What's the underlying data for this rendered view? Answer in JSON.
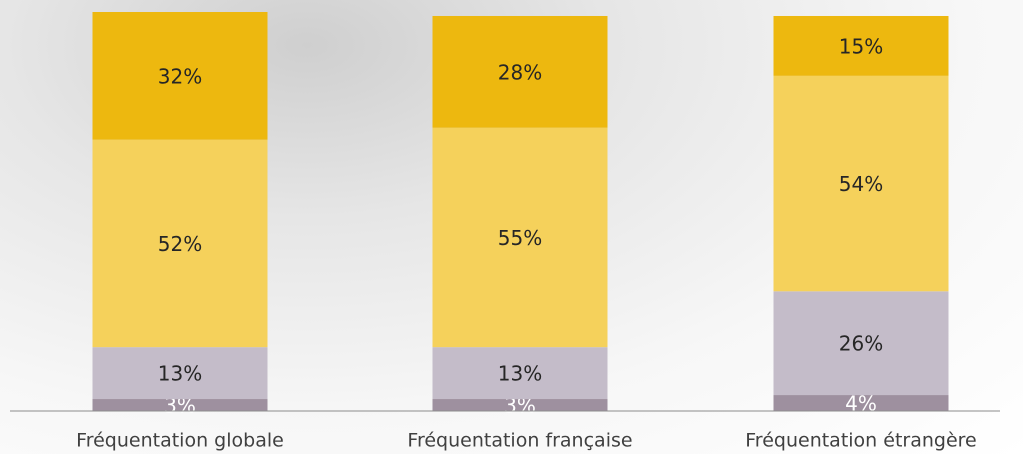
{
  "chart_data": {
    "type": "stacked_bar",
    "categories": [
      "Fréquentation globale",
      "Fréquentation française",
      "Fréquentation étrangère"
    ],
    "series": [
      {
        "color": "#9e909f",
        "label_color": "#ffffff",
        "values": [
          3,
          3,
          4
        ],
        "value_labels": [
          "3%",
          "3%",
          "4%"
        ]
      },
      {
        "color": "#c4bcc9",
        "label_color": "#262626",
        "values": [
          13,
          13,
          26
        ],
        "value_labels": [
          "13%",
          "13%",
          "26%"
        ]
      },
      {
        "color": "#f5d15b",
        "label_color": "#262626",
        "values": [
          52,
          55,
          54
        ],
        "value_labels": [
          "52%",
          "55%",
          "54%"
        ]
      },
      {
        "color": "#edb80f",
        "label_color": "#262626",
        "values": [
          32,
          28,
          15
        ],
        "value_labels": [
          "32%",
          "28%",
          "15%"
        ]
      }
    ],
    "ylim": [
      0,
      100
    ]
  }
}
